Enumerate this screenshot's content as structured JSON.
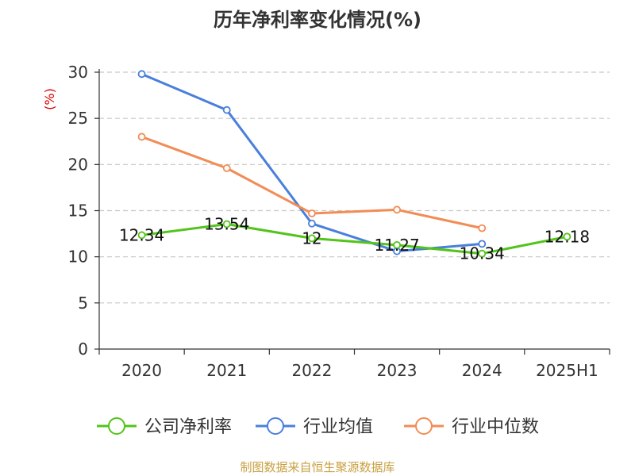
{
  "chart_data": {
    "type": "line",
    "title": "历年净利率变化情况(%)",
    "ylabel": "(%)",
    "xlabel": "",
    "categories": [
      "2020",
      "2021",
      "2022",
      "2023",
      "2024",
      "2025H1"
    ],
    "yticks": [
      "0",
      "5",
      "10",
      "15",
      "20",
      "25",
      "30"
    ],
    "ylim": [
      0,
      30
    ],
    "grid": true,
    "legend_position": "bottom",
    "series": [
      {
        "name": "公司净利率",
        "color": "#52c41a",
        "values": [
          12.34,
          13.54,
          12,
          11.27,
          10.34,
          12.18
        ],
        "labels": [
          "12.34",
          "13.54",
          "12",
          "11.27",
          "10.34",
          "12.18"
        ]
      },
      {
        "name": "行业均值",
        "color": "#4a7fdc",
        "values": [
          29.8,
          25.9,
          13.6,
          10.6,
          11.4,
          null
        ]
      },
      {
        "name": "行业中位数",
        "color": "#f28c55",
        "values": [
          23.0,
          19.6,
          14.7,
          15.1,
          13.1,
          null
        ]
      }
    ],
    "source": "制图数据来自恒生聚源数据库"
  }
}
